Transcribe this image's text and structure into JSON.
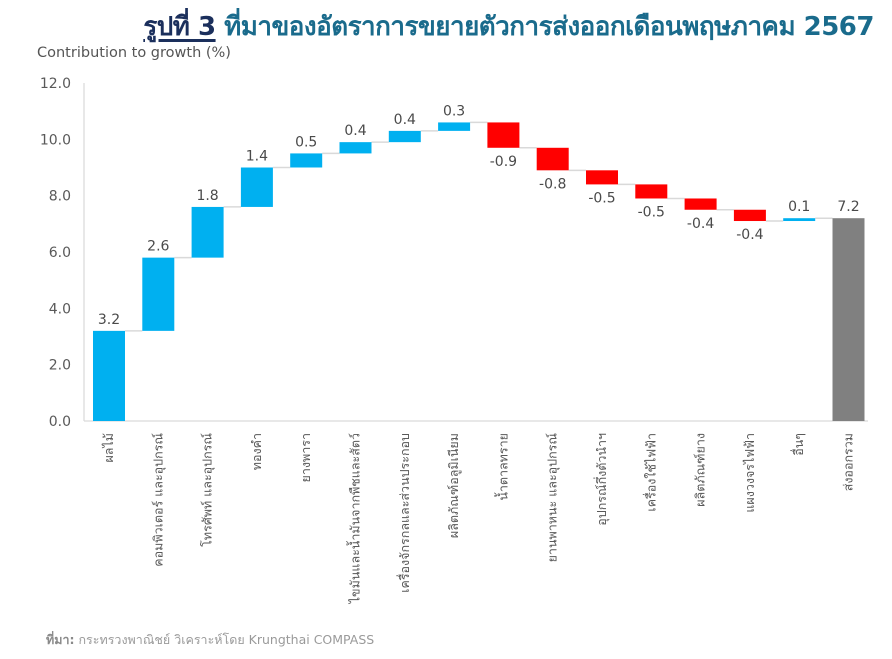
{
  "title": {
    "figure_label": "รูปที่ 3",
    "text": "ที่มาของอัตราการขยายตัวการส่งออกเดือนพฤษภาคม 2567"
  },
  "source": {
    "label": "ที่มา:",
    "text": "กระทรวงพาณิชย์ วิเคราะห์โดย Krungthai COMPASS"
  },
  "chart_data": {
    "type": "bar",
    "subtype": "waterfall",
    "title": "ที่มาของอัตราการขยายตัวการส่งออกเดือนพฤษภาคม 2567",
    "ylabel": "Contribution to growth (%)",
    "xlabel": "",
    "ylim": [
      0,
      12
    ],
    "yticks": [
      "0.0",
      "2.0",
      "4.0",
      "6.0",
      "8.0",
      "10.0",
      "12.0"
    ],
    "ytick_values": [
      0,
      2,
      4,
      6,
      8,
      10,
      12
    ],
    "grid": false,
    "categories": [
      "ผลไม้",
      "คอมพิวเตอร์ และอุปกรณ์",
      "โทรศัพท์ และอุปกรณ์",
      "ทองคำ",
      "ยางพารา",
      "ไขมันและน้ำมันจากพืชและสัตว์",
      "เครื่องจักรกลและส่วนประกอบ",
      "ผลิตภัณฑ์อลูมิเนียม",
      "น้ำตาลทราย",
      "ยานพาหนะ และอุปกรณ์",
      "อุปกรณ์กึ่งตัวนำฯ",
      "เครื่องใช้ไฟฟ้า",
      "ผลิตภัณฑ์ยาง",
      "แผงวงจรไฟฟ้า",
      "อื่นๆ",
      "ส่งออกรวม"
    ],
    "values": [
      3.2,
      2.6,
      1.8,
      1.4,
      0.5,
      0.4,
      0.4,
      0.3,
      -0.9,
      -0.8,
      -0.5,
      -0.5,
      -0.4,
      -0.4,
      0.1,
      7.2
    ],
    "labels": [
      "3.2",
      "2.6",
      "1.8",
      "1.4",
      "0.5",
      "0.4",
      "0.4",
      "0.3",
      "-0.9",
      "-0.8",
      "-0.5",
      "-0.5",
      "-0.4",
      "-0.4",
      "0.1",
      "7.2"
    ],
    "is_total": [
      false,
      false,
      false,
      false,
      false,
      false,
      false,
      false,
      false,
      false,
      false,
      false,
      false,
      false,
      false,
      true
    ],
    "colors": {
      "increase": "#00b0f0",
      "decrease": "#ff0000",
      "total": "#808080",
      "connector": "#d9d9d9",
      "axis": "#d9d9d9",
      "title": "#1a6b8c"
    }
  }
}
